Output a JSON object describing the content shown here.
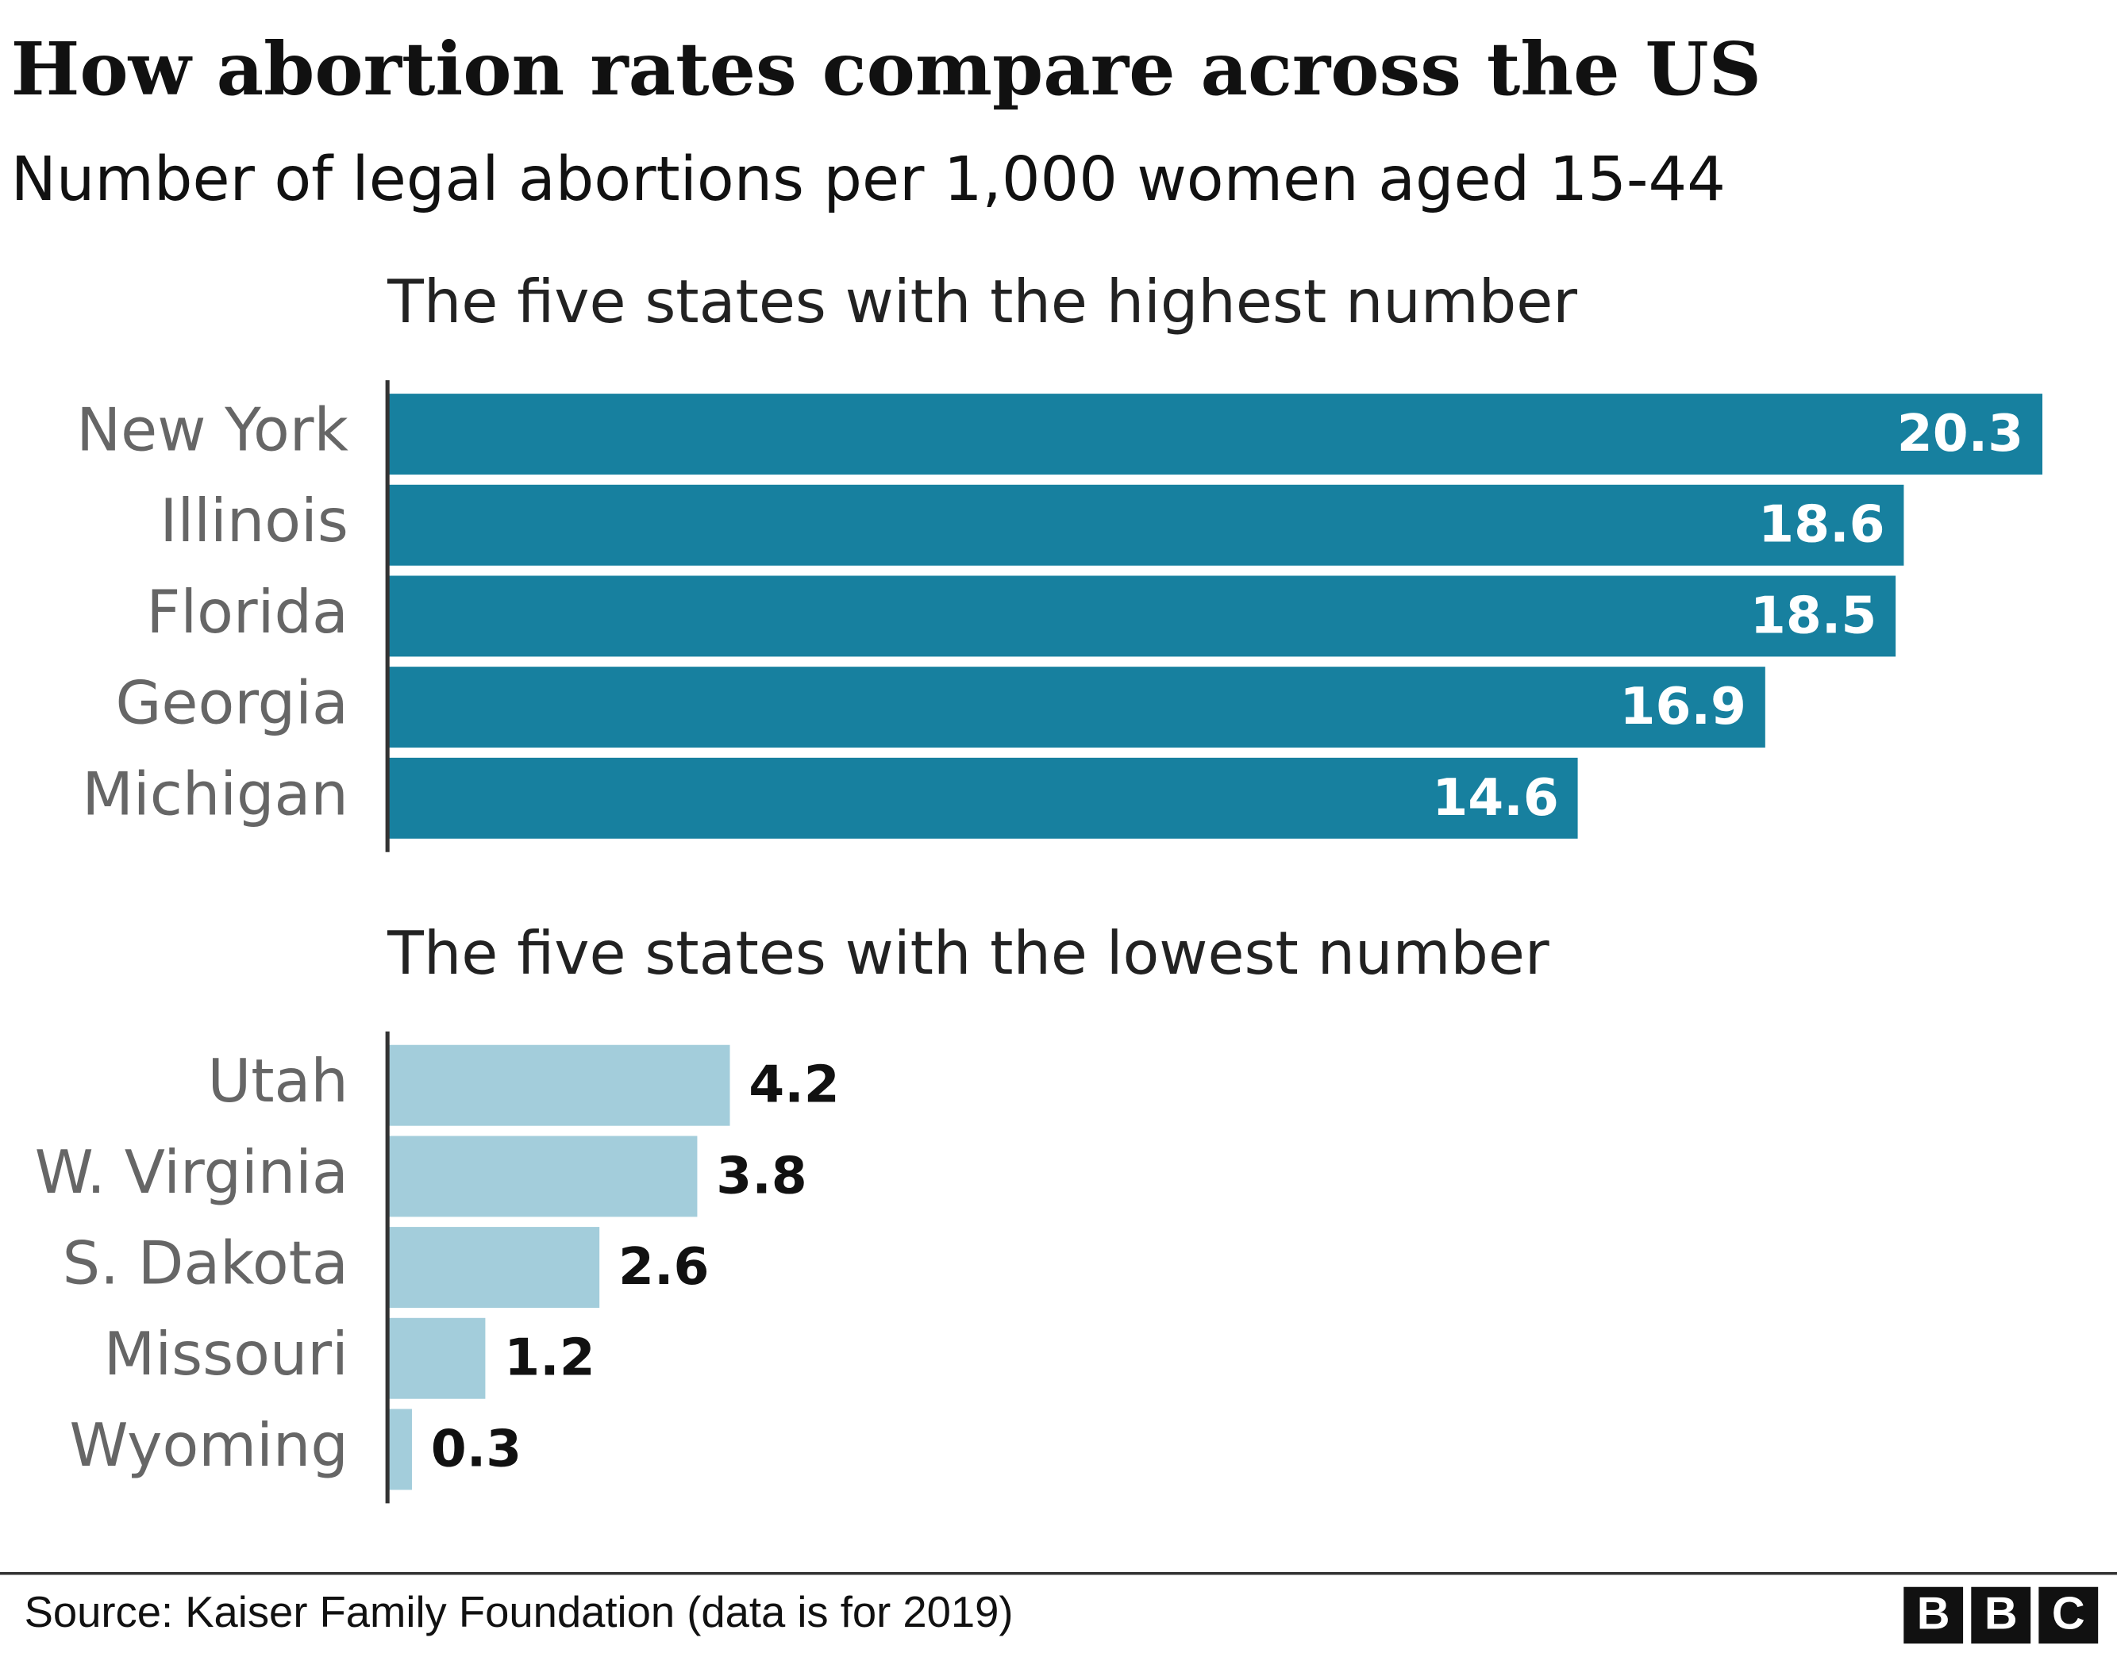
{
  "title": "How abortion rates compare across the US",
  "subtitle": "Number of legal abortions per 1,000 women aged 15-44",
  "source": "Source: Kaiser Family Foundation (data is for 2019)",
  "logo": [
    "B",
    "B",
    "C"
  ],
  "chart_data": [
    {
      "type": "bar",
      "orientation": "horizontal",
      "title": "The five states with the highest number",
      "categories": [
        "New York",
        "Illinois",
        "Florida",
        "Georgia",
        "Michigan"
      ],
      "values": [
        20.3,
        18.6,
        18.5,
        16.9,
        14.6
      ],
      "color": "#17809f",
      "xlim": [
        0,
        21
      ],
      "value_label_position": "inside",
      "value_label_color": "#ffffff"
    },
    {
      "type": "bar",
      "orientation": "horizontal",
      "title": "The five states with the lowest number",
      "categories": [
        "Utah",
        "W. Virginia",
        "S. Dakota",
        "Missouri",
        "Wyoming"
      ],
      "values": [
        4.2,
        3.8,
        2.6,
        1.2,
        0.3
      ],
      "color": "#a3cddb",
      "xlim": [
        0,
        21
      ],
      "value_label_position": "outside",
      "value_label_color": "#111111"
    }
  ]
}
